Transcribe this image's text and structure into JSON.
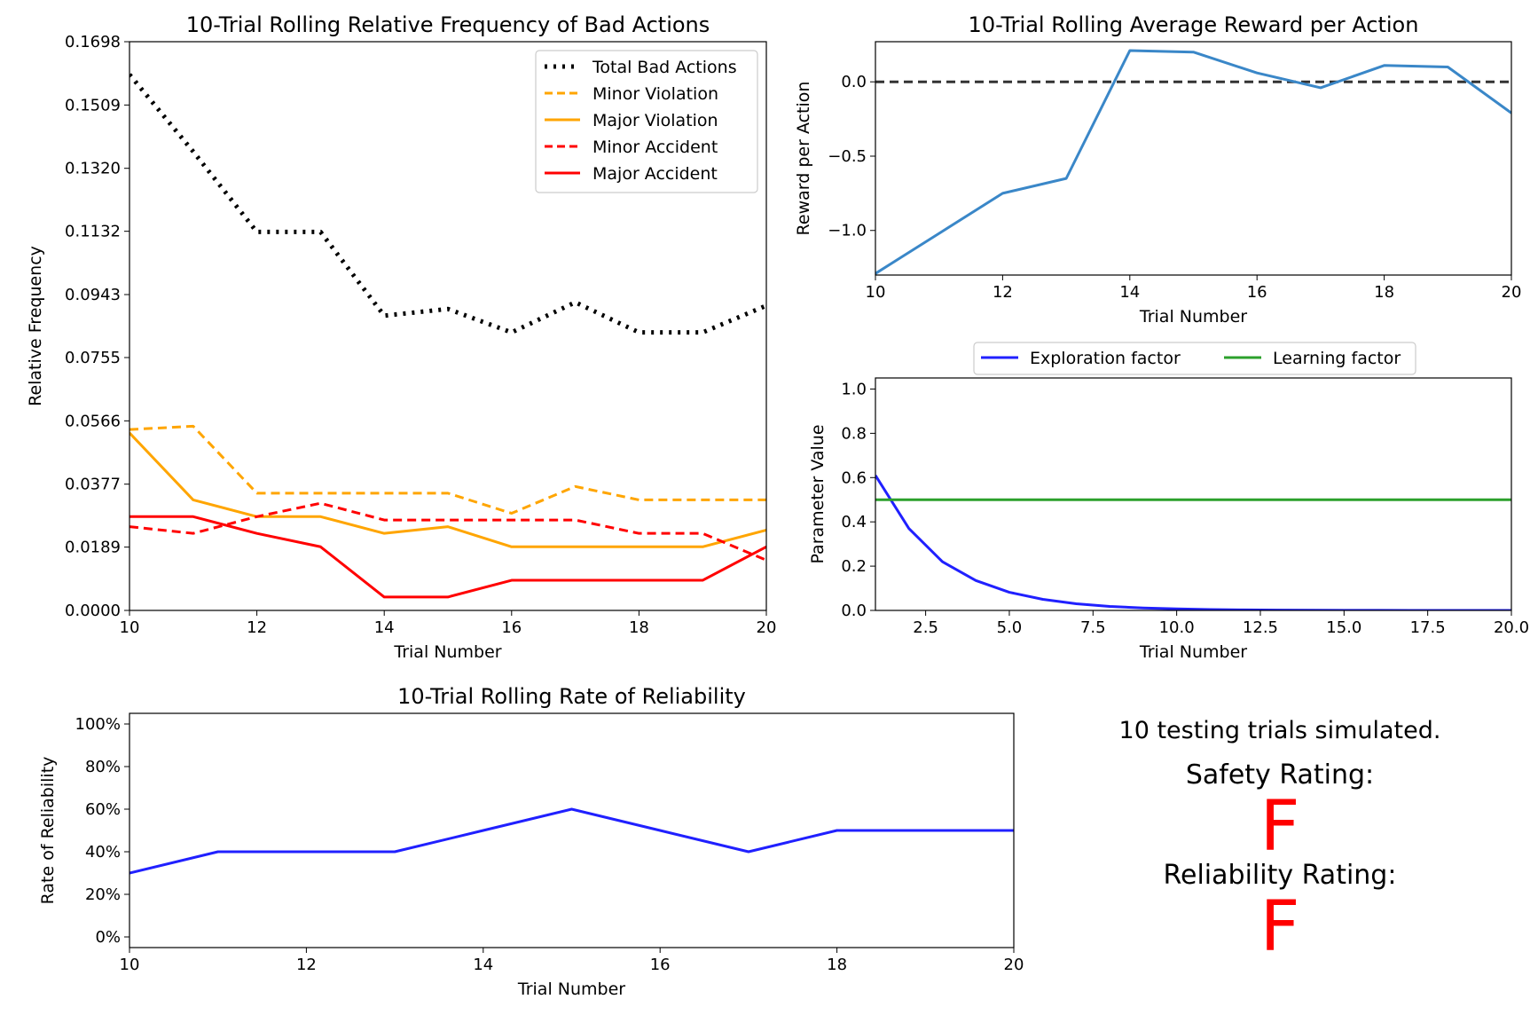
{
  "chart_data": [
    {
      "id": "bad_actions",
      "type": "line",
      "title": "10-Trial Rolling Relative Frequency of Bad Actions",
      "xlabel": "Trial Number",
      "ylabel": "Relative Frequency",
      "xlim": [
        10,
        20
      ],
      "ylim": [
        0,
        0.1698
      ],
      "xticks": [
        "10",
        "12",
        "14",
        "16",
        "18",
        "20"
      ],
      "yticks": [
        "0.0000",
        "0.0189",
        "0.0377",
        "0.0566",
        "0.0755",
        "0.0943",
        "0.1132",
        "0.1320",
        "0.1509",
        "0.1698"
      ],
      "legend": "top-right",
      "x": [
        10,
        11,
        12,
        13,
        14,
        15,
        16,
        17,
        18,
        19,
        20
      ],
      "series": [
        {
          "name": "Total Bad Actions",
          "color": "#000000",
          "style": "dotted",
          "values": [
            0.16,
            0.137,
            0.113,
            0.113,
            0.088,
            0.09,
            0.083,
            0.092,
            0.083,
            0.083,
            0.091
          ]
        },
        {
          "name": "Minor Violation",
          "color": "#ffa500",
          "style": "dashed",
          "values": [
            0.054,
            0.055,
            0.035,
            0.035,
            0.035,
            0.035,
            0.029,
            0.037,
            0.033,
            0.033,
            0.033
          ]
        },
        {
          "name": "Major Violation",
          "color": "#ffa500",
          "style": "solid",
          "values": [
            0.053,
            0.033,
            0.028,
            0.028,
            0.023,
            0.025,
            0.019,
            0.019,
            0.019,
            0.019,
            0.024
          ]
        },
        {
          "name": "Minor Accident",
          "color": "#ff0000",
          "style": "dashed",
          "values": [
            0.025,
            0.023,
            0.028,
            0.032,
            0.027,
            0.027,
            0.027,
            0.027,
            0.023,
            0.023,
            0.015
          ]
        },
        {
          "name": "Major Accident",
          "color": "#ff0000",
          "style": "solid",
          "values": [
            0.028,
            0.028,
            0.023,
            0.019,
            0.004,
            0.004,
            0.009,
            0.009,
            0.009,
            0.009,
            0.019
          ]
        }
      ]
    },
    {
      "id": "reward",
      "type": "line",
      "title": "10-Trial Rolling Average Reward per Action",
      "xlabel": "Trial Number",
      "ylabel": "Reward per Action",
      "xlim": [
        10,
        20
      ],
      "ylim": [
        -1.3,
        0.27
      ],
      "xticks": [
        "10",
        "12",
        "14",
        "16",
        "18",
        "20"
      ],
      "yticks": [
        {
          "label": "0.0",
          "value": 0.0
        },
        {
          "label": "−0.5",
          "value": -0.5
        },
        {
          "label": "−1.0",
          "value": -1.0
        }
      ],
      "reference_line": {
        "y": 0,
        "style": "dashed",
        "color": "#333333"
      },
      "x": [
        10,
        11,
        12,
        13,
        14,
        15,
        16,
        17,
        18,
        19,
        20
      ],
      "series": [
        {
          "color": "#3a87c8",
          "values": [
            -1.29,
            -1.02,
            -0.75,
            -0.65,
            0.21,
            0.2,
            0.06,
            -0.04,
            0.11,
            0.1,
            -0.21
          ]
        }
      ]
    },
    {
      "id": "parameters",
      "type": "line",
      "title": "",
      "xlabel": "Trial Number",
      "ylabel": "Parameter Value",
      "xlim": [
        1,
        20
      ],
      "ylim": [
        0,
        1.05
      ],
      "xticks": [
        "2.5",
        "5.0",
        "7.5",
        "10.0",
        "12.5",
        "15.0",
        "17.5",
        "20.0"
      ],
      "yticks": [
        "0.0",
        "0.2",
        "0.4",
        "0.6",
        "0.8",
        "1.0"
      ],
      "legend": "top, above plot",
      "x": [
        1,
        2,
        3,
        4,
        5,
        6,
        7,
        8,
        9,
        10,
        11,
        12,
        13,
        14,
        15,
        16,
        17,
        18,
        19,
        20
      ],
      "series": [
        {
          "name": "Exploration factor",
          "color": "#2020ff",
          "values": [
            0.61,
            0.37,
            0.22,
            0.135,
            0.082,
            0.05,
            0.03,
            0.018,
            0.011,
            0.007,
            0.004,
            0.0025,
            0.0015,
            0.0009,
            0.0006,
            0.0003,
            0.0002,
            0.0001,
            0.0001,
            0.0
          ]
        },
        {
          "name": "Learning factor",
          "color": "#2ca02c",
          "values": [
            0.5,
            0.5,
            0.5,
            0.5,
            0.5,
            0.5,
            0.5,
            0.5,
            0.5,
            0.5,
            0.5,
            0.5,
            0.5,
            0.5,
            0.5,
            0.5,
            0.5,
            0.5,
            0.5,
            0.5
          ]
        }
      ]
    },
    {
      "id": "reliability",
      "type": "line",
      "title": "10-Trial Rolling Rate of Reliability",
      "xlabel": "Trial Number",
      "ylabel": "Rate of Reliability",
      "xlim": [
        10,
        20
      ],
      "ylim": [
        -5,
        105
      ],
      "xticks": [
        "10",
        "12",
        "14",
        "16",
        "18",
        "20"
      ],
      "yticks": [
        "0%",
        "20%",
        "40%",
        "60%",
        "80%",
        "100%"
      ],
      "x": [
        10,
        11,
        12,
        13,
        14,
        15,
        16,
        17,
        18,
        19,
        20
      ],
      "series": [
        {
          "color": "#2020ff",
          "values": [
            30,
            40,
            40,
            40,
            50,
            60,
            50,
            40,
            50,
            50,
            50
          ]
        }
      ]
    }
  ],
  "summary": {
    "trials_text": "10 testing trials simulated.",
    "safety_label": "Safety Rating:",
    "safety_grade": "F",
    "reliability_label": "Reliability Rating:",
    "reliability_grade": "F",
    "grade_color": "#ff0000"
  }
}
